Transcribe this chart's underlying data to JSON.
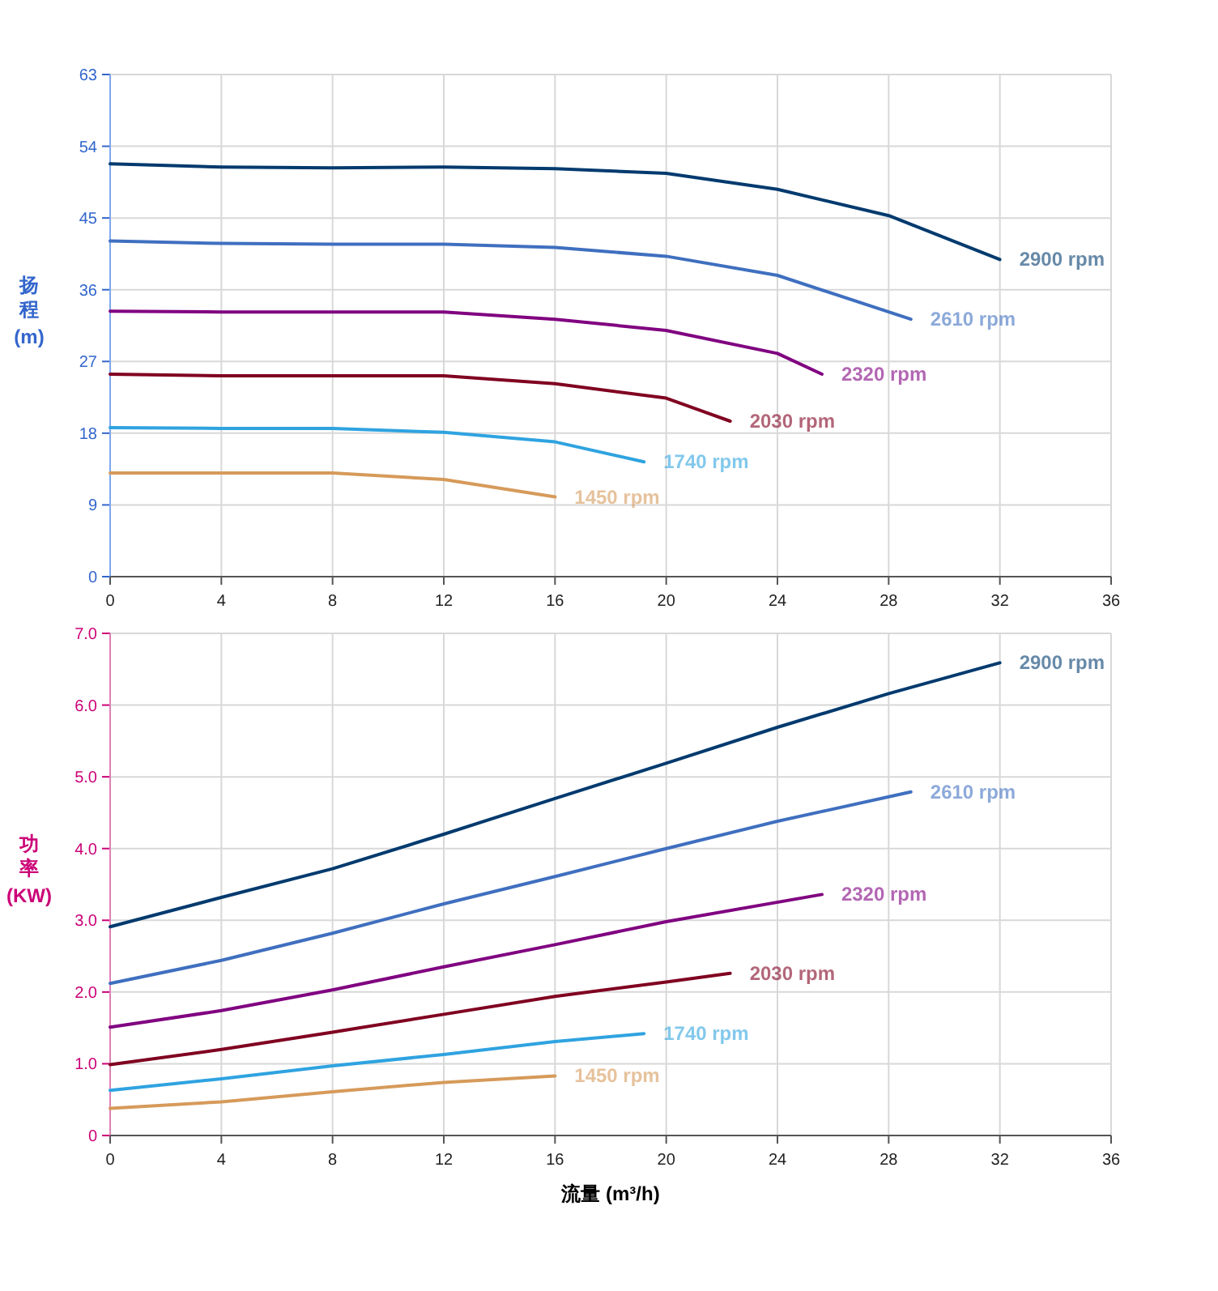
{
  "chart_data": [
    {
      "type": "line",
      "ylabel": "扬程 (m)",
      "xlim": [
        0,
        36
      ],
      "xticks": [
        0,
        4,
        8,
        12,
        16,
        20,
        24,
        28,
        32,
        36
      ],
      "ylim": [
        0,
        63
      ],
      "yticks": [
        0,
        9,
        18,
        27,
        36,
        45,
        54,
        63
      ],
      "grid": true,
      "legend": false,
      "series": [
        {
          "name": "2900 rpm",
          "color": "#003a6e",
          "x": [
            0,
            4,
            8,
            12,
            16,
            20,
            24,
            28,
            32
          ],
          "values": [
            51.8,
            51.4,
            51.3,
            51.4,
            51.2,
            50.6,
            48.6,
            45.3,
            39.8
          ]
        },
        {
          "name": "2610 rpm",
          "color": "#3f6fbf",
          "x": [
            0,
            4,
            8,
            12,
            16,
            20,
            24,
            28.8
          ],
          "values": [
            42.1,
            41.8,
            41.7,
            41.7,
            41.3,
            40.2,
            37.8,
            32.3
          ]
        },
        {
          "name": "2320 rpm",
          "color": "#800080",
          "x": [
            0,
            4,
            8,
            12,
            16,
            20,
            24,
            25.6
          ],
          "values": [
            33.3,
            33.2,
            33.2,
            33.2,
            32.3,
            30.9,
            28,
            25.4
          ]
        },
        {
          "name": "2030 rpm",
          "color": "#800020",
          "x": [
            0,
            4,
            8,
            12,
            16,
            20,
            22.3
          ],
          "values": [
            25.4,
            25.2,
            25.2,
            25.2,
            24.2,
            22.4,
            19.5
          ]
        },
        {
          "name": "1740 rpm",
          "color": "#2fa3e0",
          "x": [
            0,
            4,
            8,
            12,
            16,
            19.2
          ],
          "values": [
            18.7,
            18.6,
            18.6,
            18.1,
            16.9,
            14.4
          ]
        },
        {
          "name": "1450 rpm",
          "color": "#d69a5a",
          "x": [
            0,
            4,
            8,
            12,
            16
          ],
          "values": [
            13,
            13,
            13,
            12.2,
            10
          ]
        }
      ]
    },
    {
      "type": "line",
      "xlabel": "流量 (m³/h)",
      "ylabel": "功率 (KW)",
      "xlim": [
        0,
        36
      ],
      "xticks": [
        0,
        4,
        8,
        12,
        16,
        20,
        24,
        28,
        32,
        36
      ],
      "ylim": [
        0,
        7
      ],
      "yticks": [
        0,
        {
          "value": 1,
          "label": "1.0"
        },
        {
          "value": 2,
          "label": "2.0"
        },
        {
          "value": 3,
          "label": "3.0"
        },
        {
          "value": 4,
          "label": "4.0"
        },
        {
          "value": 5,
          "label": "5.0"
        },
        {
          "value": 6,
          "label": "6.0"
        },
        {
          "value": 7,
          "label": "7.0"
        }
      ],
      "grid": true,
      "legend": false,
      "series": [
        {
          "name": "2900 rpm",
          "color": "#003a6e",
          "x": [
            0,
            4,
            8,
            12,
            16,
            20,
            24,
            28,
            32
          ],
          "values": [
            2.91,
            3.32,
            3.72,
            4.2,
            4.7,
            5.19,
            5.69,
            6.16,
            6.59
          ]
        },
        {
          "name": "2610 rpm",
          "color": "#3f6fbf",
          "x": [
            0,
            4,
            8,
            12,
            16,
            20,
            24,
            28.8
          ],
          "values": [
            2.12,
            2.44,
            2.82,
            3.23,
            3.61,
            4.0,
            4.38,
            4.79
          ]
        },
        {
          "name": "2320 rpm",
          "color": "#800080",
          "x": [
            0,
            4,
            8,
            12,
            16,
            20,
            25.6
          ],
          "values": [
            1.51,
            1.74,
            2.03,
            2.35,
            2.66,
            2.98,
            3.36
          ]
        },
        {
          "name": "2030 rpm",
          "color": "#800020",
          "x": [
            0,
            4,
            8,
            12,
            16,
            20,
            22.3
          ],
          "values": [
            0.99,
            1.2,
            1.44,
            1.69,
            1.94,
            2.14,
            2.26
          ]
        },
        {
          "name": "1740 rpm",
          "color": "#2fa3e0",
          "x": [
            0,
            4,
            8,
            12,
            16,
            19.2
          ],
          "values": [
            0.63,
            0.79,
            0.97,
            1.13,
            1.31,
            1.42
          ]
        },
        {
          "name": "1450 rpm",
          "color": "#d69a5a",
          "x": [
            0,
            4,
            8,
            12,
            16
          ],
          "values": [
            0.38,
            0.47,
            0.61,
            0.74,
            0.83
          ]
        }
      ]
    }
  ]
}
